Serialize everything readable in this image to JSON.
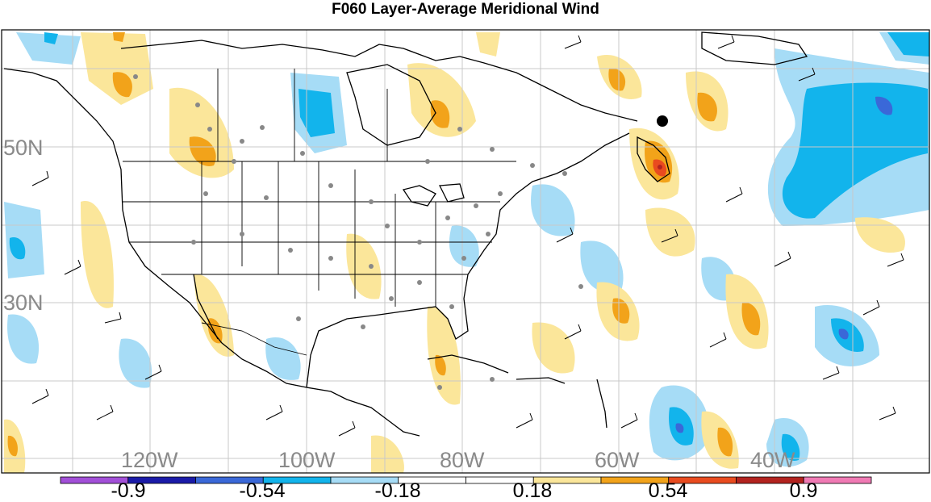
{
  "title": "F060 Layer-Average Meridional Wind",
  "lat_labels": [
    "50N",
    "30N"
  ],
  "lon_labels": [
    "120W",
    "100W",
    "80W",
    "60W",
    "40W"
  ],
  "colorbar": {
    "colors": [
      "#a24fd8",
      "#1a1aa8",
      "#3a68d8",
      "#12b4ec",
      "#a6dcf6",
      "#ffffff",
      "#ffffff",
      "#fbe69a",
      "#f2a31a",
      "#e94b1f",
      "#b3231f",
      "#f07ab4"
    ],
    "labels": [
      "-0.9",
      "-0.54",
      "-0.18",
      "0.18",
      "0.54",
      "0.9"
    ]
  },
  "colors": {
    "light_blue": "#a6dcf6",
    "mid_blue": "#12b4ec",
    "dark_blue": "#3a68d8",
    "light_yellow": "#fbe69a",
    "orange": "#f2a31a",
    "red": "#e94b1f",
    "grid": "#c8c8c8",
    "label_grey": "#8a8a8a"
  }
}
